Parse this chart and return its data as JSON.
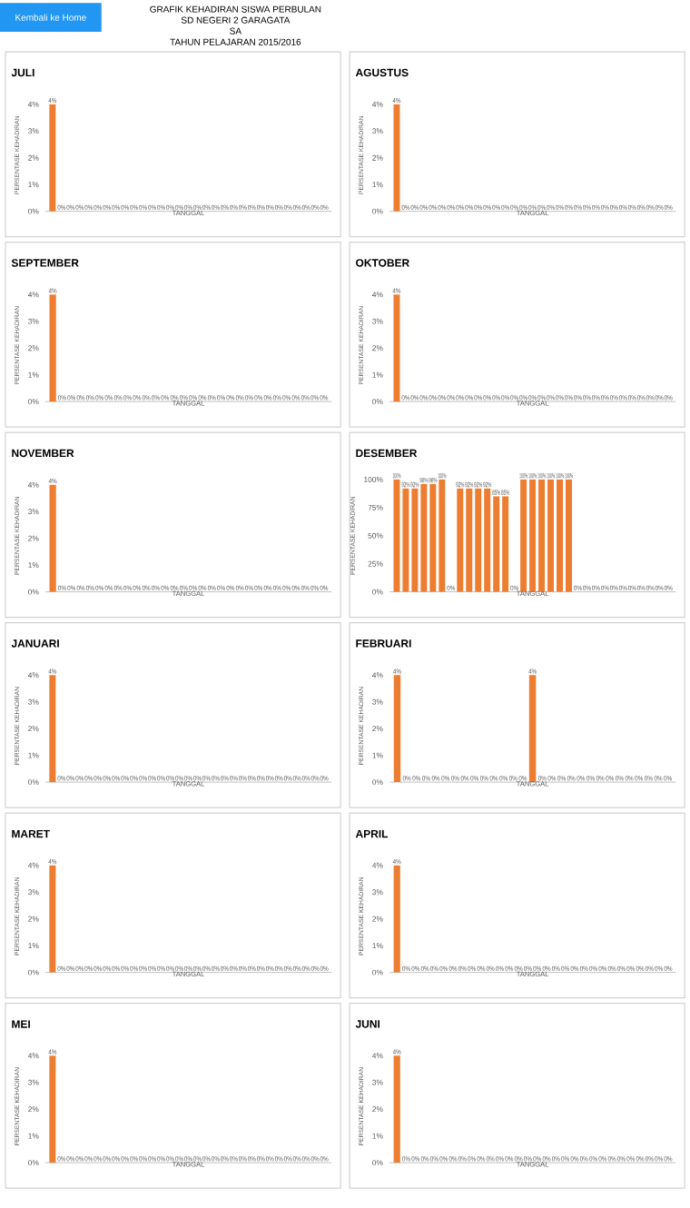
{
  "chart_data": [
    {
      "type": "other",
      "title": "GRAFIK KEHADIRAN SISWA PERBULAN",
      "annotations": [
        "Kembali ke Home",
        "SD NEGERI 2 GARAGATA",
        "SA",
        "TAHUN PELAJARAN 2015/2016"
      ]
    },
    {
      "type": "bar",
      "title": "JULI",
      "xlabel": "TANGGAL",
      "ylabel": "PERSENTASE KEHADIRAN",
      "color": "#ed7d31",
      "ylim": [
        0,
        4.2
      ],
      "yticks": [
        {
          "value": 0,
          "label": "0%"
        },
        {
          "value": 1,
          "label": "1%"
        },
        {
          "value": 2,
          "label": "2%"
        },
        {
          "value": 3,
          "label": "3%"
        },
        {
          "value": 4,
          "label": "4%"
        }
      ],
      "categories": [
        null,
        null,
        null,
        null,
        null,
        null,
        null,
        null,
        null,
        null,
        null,
        null,
        null,
        null,
        null,
        null,
        null,
        null,
        null,
        null,
        null,
        null,
        null,
        null,
        null,
        null,
        null,
        null,
        null,
        null,
        null
      ],
      "values": [
        4,
        0,
        0,
        0,
        0,
        0,
        0,
        0,
        0,
        0,
        0,
        0,
        0,
        0,
        0,
        0,
        0,
        0,
        0,
        0,
        0,
        0,
        0,
        0,
        0,
        0,
        0,
        0,
        0,
        0,
        0
      ],
      "value_labels": [
        "4%",
        "0%",
        "0%",
        "0%",
        "0%",
        "0%",
        "0%",
        "0%",
        "0%",
        "0%",
        "0%",
        "0%",
        "0%",
        "0%",
        "0%",
        "0%",
        "0%",
        "0%",
        "0%",
        "0%",
        "0%",
        "0%",
        "0%",
        "0%",
        "0%",
        "0%",
        "0%",
        "0%",
        "0%",
        "0%",
        "0%"
      ]
    },
    {
      "type": "bar",
      "title": "AGUSTUS",
      "xlabel": "TANGGAL",
      "ylabel": "PERSENTASE KEHADIRAN",
      "color": "#ed7d31",
      "ylim": [
        0,
        4.2
      ],
      "yticks": [
        {
          "value": 0,
          "label": "0%"
        },
        {
          "value": 1,
          "label": "1%"
        },
        {
          "value": 2,
          "label": "2%"
        },
        {
          "value": 3,
          "label": "3%"
        },
        {
          "value": 4,
          "label": "4%"
        }
      ],
      "categories": [
        null,
        null,
        null,
        null,
        null,
        null,
        null,
        null,
        null,
        null,
        null,
        null,
        null,
        null,
        null,
        null,
        null,
        null,
        null,
        null,
        null,
        null,
        null,
        null,
        null,
        null,
        null,
        null,
        null,
        null,
        null
      ],
      "values": [
        4,
        0,
        0,
        0,
        0,
        0,
        0,
        0,
        0,
        0,
        0,
        0,
        0,
        0,
        0,
        0,
        0,
        0,
        0,
        0,
        0,
        0,
        0,
        0,
        0,
        0,
        0,
        0,
        0,
        0,
        0
      ],
      "value_labels": [
        "4%",
        "0%",
        "0%",
        "0%",
        "0%",
        "0%",
        "0%",
        "0%",
        "0%",
        "0%",
        "0%",
        "0%",
        "0%",
        "0%",
        "0%",
        "0%",
        "0%",
        "0%",
        "0%",
        "0%",
        "0%",
        "0%",
        "0%",
        "0%",
        "0%",
        "0%",
        "0%",
        "0%",
        "0%",
        "0%",
        "0%"
      ]
    },
    {
      "type": "bar",
      "title": "SEPTEMBER",
      "xlabel": "TANGGAL",
      "ylabel": "PERSENTASE KEHADIRAN",
      "color": "#ed7d31",
      "ylim": [
        0,
        4.2
      ],
      "yticks": [
        {
          "value": 0,
          "label": "0%"
        },
        {
          "value": 1,
          "label": "1%"
        },
        {
          "value": 2,
          "label": "2%"
        },
        {
          "value": 3,
          "label": "3%"
        },
        {
          "value": 4,
          "label": "4%"
        }
      ],
      "categories": [
        null,
        null,
        null,
        null,
        null,
        null,
        null,
        null,
        null,
        null,
        null,
        null,
        null,
        null,
        null,
        null,
        null,
        null,
        null,
        null,
        null,
        null,
        null,
        null,
        null,
        null,
        null,
        null,
        null,
        null
      ],
      "values": [
        4,
        0,
        0,
        0,
        0,
        0,
        0,
        0,
        0,
        0,
        0,
        0,
        0,
        0,
        0,
        0,
        0,
        0,
        0,
        0,
        0,
        0,
        0,
        0,
        0,
        0,
        0,
        0,
        0,
        0
      ],
      "value_labels": [
        "4%",
        "0%",
        "0%",
        "0%",
        "0%",
        "0%",
        "0%",
        "0%",
        "0%",
        "0%",
        "0%",
        "0%",
        "0%",
        "0%",
        "0%",
        "0%",
        "0%",
        "0%",
        "0%",
        "0%",
        "0%",
        "0%",
        "0%",
        "0%",
        "0%",
        "0%",
        "0%",
        "0%",
        "0%",
        "0%"
      ]
    },
    {
      "type": "bar",
      "title": "OKTOBER",
      "xlabel": "TANGGAL",
      "ylabel": "PERSENTASE KEHADIRAN",
      "color": "#ed7d31",
      "ylim": [
        0,
        4.2
      ],
      "yticks": [
        {
          "value": 0,
          "label": "0%"
        },
        {
          "value": 1,
          "label": "1%"
        },
        {
          "value": 2,
          "label": "2%"
        },
        {
          "value": 3,
          "label": "3%"
        },
        {
          "value": 4,
          "label": "4%"
        }
      ],
      "categories": [
        null,
        null,
        null,
        null,
        null,
        null,
        null,
        null,
        null,
        null,
        null,
        null,
        null,
        null,
        null,
        null,
        null,
        null,
        null,
        null,
        null,
        null,
        null,
        null,
        null,
        null,
        null,
        null,
        null,
        null,
        null
      ],
      "values": [
        4,
        0,
        0,
        0,
        0,
        0,
        0,
        0,
        0,
        0,
        0,
        0,
        0,
        0,
        0,
        0,
        0,
        0,
        0,
        0,
        0,
        0,
        0,
        0,
        0,
        0,
        0,
        0,
        0,
        0,
        0
      ],
      "value_labels": [
        "4%",
        "0%",
        "0%",
        "0%",
        "0%",
        "0%",
        "0%",
        "0%",
        "0%",
        "0%",
        "0%",
        "0%",
        "0%",
        "0%",
        "0%",
        "0%",
        "0%",
        "0%",
        "0%",
        "0%",
        "0%",
        "0%",
        "0%",
        "0%",
        "0%",
        "0%",
        "0%",
        "0%",
        "0%",
        "0%",
        "0%"
      ]
    },
    {
      "type": "bar",
      "title": "NOVEMBER",
      "xlabel": "TANGGAL",
      "ylabel": "PERSENTASE KEHADIRAN",
      "color": "#ed7d31",
      "ylim": [
        0,
        4.2
      ],
      "yticks": [
        {
          "value": 0,
          "label": "0%"
        },
        {
          "value": 1,
          "label": "1%"
        },
        {
          "value": 2,
          "label": "2%"
        },
        {
          "value": 3,
          "label": "3%"
        },
        {
          "value": 4,
          "label": "4%"
        }
      ],
      "categories": [
        null,
        null,
        null,
        null,
        null,
        null,
        null,
        null,
        null,
        null,
        null,
        null,
        null,
        null,
        null,
        null,
        null,
        null,
        null,
        null,
        null,
        null,
        null,
        null,
        null,
        null,
        null,
        null,
        null,
        null
      ],
      "values": [
        4,
        0,
        0,
        0,
        0,
        0,
        0,
        0,
        0,
        0,
        0,
        0,
        0,
        0,
        0,
        0,
        0,
        0,
        0,
        0,
        0,
        0,
        0,
        0,
        0,
        0,
        0,
        0,
        0,
        0
      ],
      "value_labels": [
        "4%",
        "0%",
        "0%",
        "0%",
        "0%",
        "0%",
        "0%",
        "0%",
        "0%",
        "0%",
        "0%",
        "0%",
        "0%",
        "0%",
        "0%",
        "0%",
        "0%",
        "0%",
        "0%",
        "0%",
        "0%",
        "0%",
        "0%",
        "0%",
        "0%",
        "0%",
        "0%",
        "0%",
        "0%",
        "0%"
      ]
    },
    {
      "type": "bar",
      "title": "DESEMBER",
      "xlabel": "TANGGAL",
      "ylabel": "PERSENTASE KEHADIRAN",
      "color": "#ed7d31",
      "ylim": [
        0,
        100
      ],
      "yticks": [
        {
          "value": 0,
          "label": "0%"
        },
        {
          "value": 25,
          "label": "25%"
        },
        {
          "value": 50,
          "label": "50%"
        },
        {
          "value": 75,
          "label": "75%"
        },
        {
          "value": 100,
          "label": "100%"
        }
      ],
      "categories": [
        null,
        null,
        null,
        null,
        null,
        null,
        null,
        null,
        null,
        null,
        null,
        null,
        null,
        null,
        null,
        null,
        null,
        null,
        null,
        null,
        null,
        null,
        null,
        null,
        null,
        null,
        null,
        null,
        null,
        null,
        null
      ],
      "values": [
        100,
        92,
        92,
        96,
        96,
        100,
        0,
        92,
        92,
        92,
        92,
        85,
        85,
        0,
        100,
        100,
        100,
        100,
        100,
        100,
        0,
        0,
        0,
        0,
        0,
        0,
        0,
        0,
        0,
        0,
        0
      ],
      "value_labels": [
        "100%",
        "92%",
        "92%",
        "96%",
        "96%",
        "100%",
        "0%",
        "92%",
        "92%",
        "92%",
        "92%",
        "85%",
        "85%",
        "0%",
        "100%",
        "100%",
        "100%",
        "100%",
        "100%",
        "100%",
        "0%",
        "0%",
        "0%",
        "0%",
        "0%",
        "0%",
        "0%",
        "0%",
        "0%",
        "0%",
        "0%"
      ]
    },
    {
      "type": "bar",
      "title": "JANUARI",
      "xlabel": "TANGGAL",
      "ylabel": "PERSENTASE KEHADIRAN",
      "color": "#ed7d31",
      "ylim": [
        0,
        4.2
      ],
      "yticks": [
        {
          "value": 0,
          "label": "0%"
        },
        {
          "value": 1,
          "label": "1%"
        },
        {
          "value": 2,
          "label": "2%"
        },
        {
          "value": 3,
          "label": "3%"
        },
        {
          "value": 4,
          "label": "4%"
        }
      ],
      "categories": [
        null,
        null,
        null,
        null,
        null,
        null,
        null,
        null,
        null,
        null,
        null,
        null,
        null,
        null,
        null,
        null,
        null,
        null,
        null,
        null,
        null,
        null,
        null,
        null,
        null,
        null,
        null,
        null,
        null,
        null,
        null
      ],
      "values": [
        4,
        0,
        0,
        0,
        0,
        0,
        0,
        0,
        0,
        0,
        0,
        0,
        0,
        0,
        0,
        0,
        0,
        0,
        0,
        0,
        0,
        0,
        0,
        0,
        0,
        0,
        0,
        0,
        0,
        0,
        0
      ],
      "value_labels": [
        "4%",
        "0%",
        "0%",
        "0%",
        "0%",
        "0%",
        "0%",
        "0%",
        "0%",
        "0%",
        "0%",
        "0%",
        "0%",
        "0%",
        "0%",
        "0%",
        "0%",
        "0%",
        "0%",
        "0%",
        "0%",
        "0%",
        "0%",
        "0%",
        "0%",
        "0%",
        "0%",
        "0%",
        "0%",
        "0%",
        "0%"
      ]
    },
    {
      "type": "bar",
      "title": "FEBRUARI",
      "xlabel": "TANGGAL",
      "ylabel": "PERSENTASE KEHADIRAN",
      "color": "#ed7d31",
      "ylim": [
        0,
        4.2
      ],
      "yticks": [
        {
          "value": 0,
          "label": "0%"
        },
        {
          "value": 1,
          "label": "1%"
        },
        {
          "value": 2,
          "label": "2%"
        },
        {
          "value": 3,
          "label": "3%"
        },
        {
          "value": 4,
          "label": "4%"
        }
      ],
      "categories": [
        null,
        null,
        null,
        null,
        null,
        null,
        null,
        null,
        null,
        null,
        null,
        null,
        null,
        null,
        null,
        null,
        null,
        null,
        null,
        null,
        null,
        null,
        null,
        null,
        null,
        null,
        null,
        null,
        null
      ],
      "values": [
        4,
        0,
        0,
        0,
        0,
        0,
        0,
        0,
        0,
        0,
        0,
        0,
        0,
        0,
        4,
        0,
        0,
        0,
        0,
        0,
        0,
        0,
        0,
        0,
        0,
        0,
        0,
        0,
        0
      ],
      "value_labels": [
        "4%",
        "0%",
        "0%",
        "0%",
        "0%",
        "0%",
        "0%",
        "0%",
        "0%",
        "0%",
        "0%",
        "0%",
        "0%",
        "0%",
        "4%",
        "0%",
        "0%",
        "0%",
        "0%",
        "0%",
        "0%",
        "0%",
        "0%",
        "0%",
        "0%",
        "0%",
        "0%",
        "0%",
        "0%"
      ]
    },
    {
      "type": "bar",
      "title": "MARET",
      "xlabel": "TANGGAL",
      "ylabel": "PERSENTASE KEHADIRAN",
      "color": "#ed7d31",
      "ylim": [
        0,
        4.2
      ],
      "yticks": [
        {
          "value": 0,
          "label": "0%"
        },
        {
          "value": 1,
          "label": "1%"
        },
        {
          "value": 2,
          "label": "2%"
        },
        {
          "value": 3,
          "label": "3%"
        },
        {
          "value": 4,
          "label": "4%"
        }
      ],
      "categories": [
        null,
        null,
        null,
        null,
        null,
        null,
        null,
        null,
        null,
        null,
        null,
        null,
        null,
        null,
        null,
        null,
        null,
        null,
        null,
        null,
        null,
        null,
        null,
        null,
        null,
        null,
        null,
        null,
        null,
        null,
        null
      ],
      "values": [
        4,
        0,
        0,
        0,
        0,
        0,
        0,
        0,
        0,
        0,
        0,
        0,
        0,
        0,
        0,
        0,
        0,
        0,
        0,
        0,
        0,
        0,
        0,
        0,
        0,
        0,
        0,
        0,
        0,
        0,
        0
      ],
      "value_labels": [
        "4%",
        "0%",
        "0%",
        "0%",
        "0%",
        "0%",
        "0%",
        "0%",
        "0%",
        "0%",
        "0%",
        "0%",
        "0%",
        "0%",
        "0%",
        "0%",
        "0%",
        "0%",
        "0%",
        "0%",
        "0%",
        "0%",
        "0%",
        "0%",
        "0%",
        "0%",
        "0%",
        "0%",
        "0%",
        "0%",
        "0%"
      ]
    },
    {
      "type": "bar",
      "title": "APRIL",
      "xlabel": "TANGGAL",
      "ylabel": "PERSENTASE KEHADIRAN",
      "color": "#ed7d31",
      "ylim": [
        0,
        4.2
      ],
      "yticks": [
        {
          "value": 0,
          "label": "0%"
        },
        {
          "value": 1,
          "label": "1%"
        },
        {
          "value": 2,
          "label": "2%"
        },
        {
          "value": 3,
          "label": "3%"
        },
        {
          "value": 4,
          "label": "4%"
        }
      ],
      "categories": [
        null,
        null,
        null,
        null,
        null,
        null,
        null,
        null,
        null,
        null,
        null,
        null,
        null,
        null,
        null,
        null,
        null,
        null,
        null,
        null,
        null,
        null,
        null,
        null,
        null,
        null,
        null,
        null,
        null,
        null
      ],
      "values": [
        4,
        0,
        0,
        0,
        0,
        0,
        0,
        0,
        0,
        0,
        0,
        0,
        0,
        0,
        0,
        0,
        0,
        0,
        0,
        0,
        0,
        0,
        0,
        0,
        0,
        0,
        0,
        0,
        0,
        0
      ],
      "value_labels": [
        "4%",
        "0%",
        "0%",
        "0%",
        "0%",
        "0%",
        "0%",
        "0%",
        "0%",
        "0%",
        "0%",
        "0%",
        "0%",
        "0%",
        "0%",
        "0%",
        "0%",
        "0%",
        "0%",
        "0%",
        "0%",
        "0%",
        "0%",
        "0%",
        "0%",
        "0%",
        "0%",
        "0%",
        "0%",
        "0%"
      ]
    },
    {
      "type": "bar",
      "title": "MEI",
      "xlabel": "TANGGAL",
      "ylabel": "PERSENTASE KEHADIRAN",
      "color": "#ed7d31",
      "ylim": [
        0,
        4.2
      ],
      "yticks": [
        {
          "value": 0,
          "label": "0%"
        },
        {
          "value": 1,
          "label": "1%"
        },
        {
          "value": 2,
          "label": "2%"
        },
        {
          "value": 3,
          "label": "3%"
        },
        {
          "value": 4,
          "label": "4%"
        }
      ],
      "categories": [
        null,
        null,
        null,
        null,
        null,
        null,
        null,
        null,
        null,
        null,
        null,
        null,
        null,
        null,
        null,
        null,
        null,
        null,
        null,
        null,
        null,
        null,
        null,
        null,
        null,
        null,
        null,
        null,
        null,
        null,
        null
      ],
      "values": [
        4,
        0,
        0,
        0,
        0,
        0,
        0,
        0,
        0,
        0,
        0,
        0,
        0,
        0,
        0,
        0,
        0,
        0,
        0,
        0,
        0,
        0,
        0,
        0,
        0,
        0,
        0,
        0,
        0,
        0,
        0
      ],
      "value_labels": [
        "4%",
        "0%",
        "0%",
        "0%",
        "0%",
        "0%",
        "0%",
        "0%",
        "0%",
        "0%",
        "0%",
        "0%",
        "0%",
        "0%",
        "0%",
        "0%",
        "0%",
        "0%",
        "0%",
        "0%",
        "0%",
        "0%",
        "0%",
        "0%",
        "0%",
        "0%",
        "0%",
        "0%",
        "0%",
        "0%",
        "0%"
      ]
    },
    {
      "type": "bar",
      "title": "JUNI",
      "xlabel": "TANGGAL",
      "ylabel": "PERSENTASE KEHADIRAN",
      "color": "#ed7d31",
      "ylim": [
        0,
        4.2
      ],
      "yticks": [
        {
          "value": 0,
          "label": "0%"
        },
        {
          "value": 1,
          "label": "1%"
        },
        {
          "value": 2,
          "label": "2%"
        },
        {
          "value": 3,
          "label": "3%"
        },
        {
          "value": 4,
          "label": "4%"
        }
      ],
      "categories": [
        null,
        null,
        null,
        null,
        null,
        null,
        null,
        null,
        null,
        null,
        null,
        null,
        null,
        null,
        null,
        null,
        null,
        null,
        null,
        null,
        null,
        null,
        null,
        null,
        null,
        null,
        null,
        null,
        null,
        null
      ],
      "values": [
        4,
        0,
        0,
        0,
        0,
        0,
        0,
        0,
        0,
        0,
        0,
        0,
        0,
        0,
        0,
        0,
        0,
        0,
        0,
        0,
        0,
        0,
        0,
        0,
        0,
        0,
        0,
        0,
        0,
        0
      ],
      "value_labels": [
        "4%",
        "0%",
        "0%",
        "0%",
        "0%",
        "0%",
        "0%",
        "0%",
        "0%",
        "0%",
        "0%",
        "0%",
        "0%",
        "0%",
        "0%",
        "0%",
        "0%",
        "0%",
        "0%",
        "0%",
        "0%",
        "0%",
        "0%",
        "0%",
        "0%",
        "0%",
        "0%",
        "0%",
        "0%",
        "0%"
      ]
    }
  ]
}
